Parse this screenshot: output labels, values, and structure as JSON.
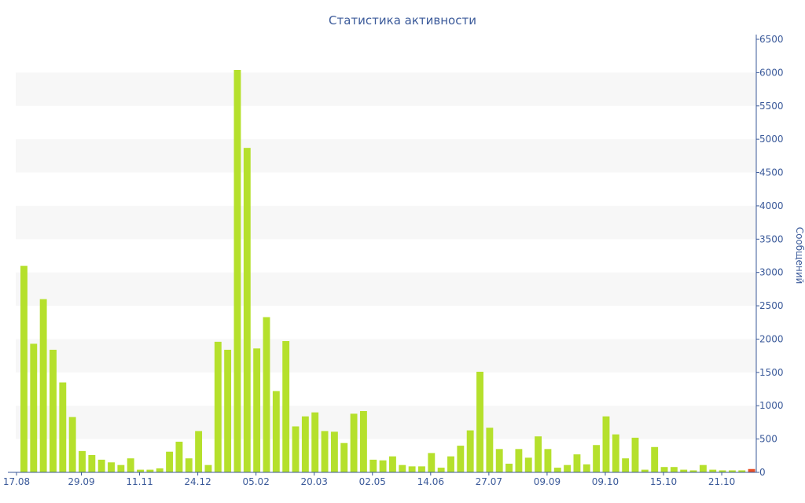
{
  "chart_data": {
    "type": "bar",
    "title": "Статистика активности",
    "ylabel": "Сообщений",
    "xlabel": "",
    "ylim": [
      0,
      6500
    ],
    "y_ticks": [
      0,
      500,
      1000,
      1500,
      2000,
      2500,
      3000,
      3500,
      4000,
      4500,
      5000,
      5500,
      6000,
      6500
    ],
    "y_axis_side": "right",
    "x_tick_labels": [
      {
        "label": "17.08",
        "bar": 0
      },
      {
        "label": "29.09",
        "bar": 6
      },
      {
        "label": "11.11",
        "bar": 12
      },
      {
        "label": "24.12",
        "bar": 18
      },
      {
        "label": "05.02",
        "bar": 24
      },
      {
        "label": "20.03",
        "bar": 30
      },
      {
        "label": "02.05",
        "bar": 36
      },
      {
        "label": "14.06",
        "bar": 42
      },
      {
        "label": "27.07",
        "bar": 48
      },
      {
        "label": "09.09",
        "bar": 54
      },
      {
        "label": "09.10",
        "bar": 60
      },
      {
        "label": "15.10",
        "bar": 66
      },
      {
        "label": "21.10",
        "bar": 72
      }
    ],
    "values": [
      3100,
      1930,
      2600,
      1840,
      1350,
      830,
      320,
      260,
      190,
      150,
      110,
      210,
      40,
      40,
      60,
      310,
      460,
      210,
      620,
      110,
      1960,
      1840,
      6040,
      4870,
      1860,
      2330,
      1220,
      1970,
      690,
      840,
      900,
      620,
      610,
      440,
      880,
      920,
      190,
      180,
      240,
      110,
      90,
      90,
      290,
      70,
      240,
      400,
      630,
      1510,
      670,
      350,
      130,
      350,
      220,
      540,
      350,
      70,
      110,
      270,
      120,
      410,
      840,
      570,
      210,
      520,
      40,
      380,
      80,
      80,
      40,
      30,
      110,
      40,
      30,
      30,
      30,
      50
    ],
    "highlight_last_bar": true,
    "grid": "alternating horizontal bands",
    "colors": {
      "bar": "#b5e02c",
      "last_bar": "#e8502a",
      "band": "#f7f7f7",
      "axis": "#3b5a9a",
      "title": "#3b5a9a"
    }
  }
}
